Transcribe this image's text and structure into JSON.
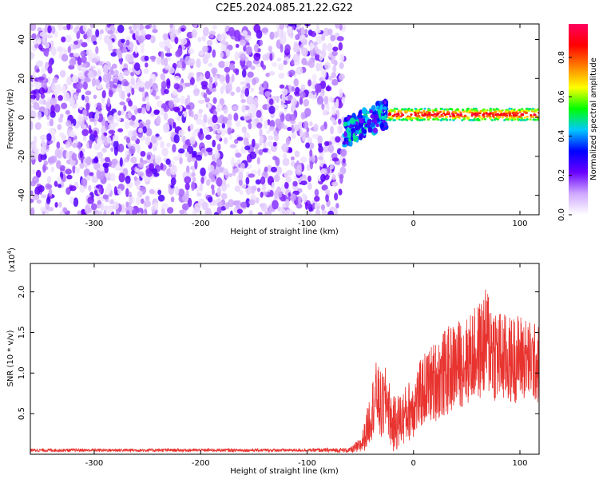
{
  "title": "C2E5.2024.085.21.22.G22",
  "colors": {
    "snr_line": "#e8332f",
    "axis": "#000000",
    "colorbar": [
      "#ffffff",
      "#cfa8ff",
      "#6a00ff",
      "#0000ff",
      "#00c8ff",
      "#00ff00",
      "#ffff00",
      "#ff8000",
      "#ff0000",
      "#ff0060"
    ]
  },
  "chart_data": [
    {
      "type": "heatmap",
      "title": "C2E5.2024.085.21.22.G22",
      "xlabel": "Height of straight line (km)",
      "ylabel": "Frequency (Hz)",
      "xlim": [
        -360,
        118
      ],
      "ylim": [
        -50,
        48
      ],
      "x_ticks": [
        -300,
        -200,
        -100,
        0,
        100
      ],
      "y_ticks": [
        -40,
        -20,
        0,
        20,
        40
      ],
      "colorbar": {
        "label": "Normalized spectral amplitude",
        "range": [
          0,
          0.97
        ],
        "ticks": [
          0.0,
          0.2,
          0.4,
          0.6,
          0.8
        ]
      },
      "regions": [
        {
          "x_range": [
            -360,
            -65
          ],
          "freq_range": [
            -50,
            48
          ],
          "amplitude": "noise 0.0-0.25"
        },
        {
          "x_range": [
            -65,
            -25
          ],
          "freq_range": [
            -15,
            15
          ],
          "amplitude": "transition 0.2-0.5"
        },
        {
          "x_range": [
            -25,
            118
          ],
          "freq_center": 1.5,
          "freq_halfwidth": 3,
          "amplitude": "signal 0.5-0.97"
        }
      ]
    },
    {
      "type": "line",
      "xlabel": "Height of straight line (km)",
      "ylabel": "SNR (10 * v/v)",
      "y_multiplier": "(x10",
      "y_multiplier_exp": "4",
      "y_multiplier_close": ")",
      "xlim": [
        -360,
        118
      ],
      "ylim": [
        0,
        2.35
      ],
      "x_ticks": [
        -300,
        -200,
        -100,
        0,
        100
      ],
      "y_ticks": [
        0.5,
        1.0,
        1.5,
        2.0
      ],
      "y_tick_labels": [
        "0.5",
        "1.0",
        "1.5",
        "2.0"
      ],
      "series": [
        {
          "x": [
            -360,
            -300,
            -200,
            -100,
            -60,
            -50,
            -45,
            -40,
            -35,
            -30,
            -25,
            -20,
            -10,
            0,
            10,
            20,
            30,
            40,
            50,
            60,
            70,
            80,
            90,
            100,
            110,
            118
          ],
          "values": [
            0.05,
            0.05,
            0.05,
            0.05,
            0.05,
            0.1,
            0.25,
            0.5,
            0.75,
            0.55,
            0.7,
            0.35,
            0.45,
            0.6,
            0.8,
            0.9,
            1.0,
            1.1,
            1.15,
            1.25,
            1.4,
            1.2,
            1.15,
            1.2,
            1.15,
            1.1
          ],
          "noise_amplitude": [
            0.02,
            0.02,
            0.02,
            0.02,
            0.03,
            0.1,
            0.2,
            0.35,
            0.4,
            0.45,
            0.4,
            0.35,
            0.35,
            0.4,
            0.45,
            0.5,
            0.55,
            0.55,
            0.55,
            0.6,
            0.7,
            0.6,
            0.55,
            0.55,
            0.5,
            0.5
          ]
        }
      ]
    }
  ]
}
